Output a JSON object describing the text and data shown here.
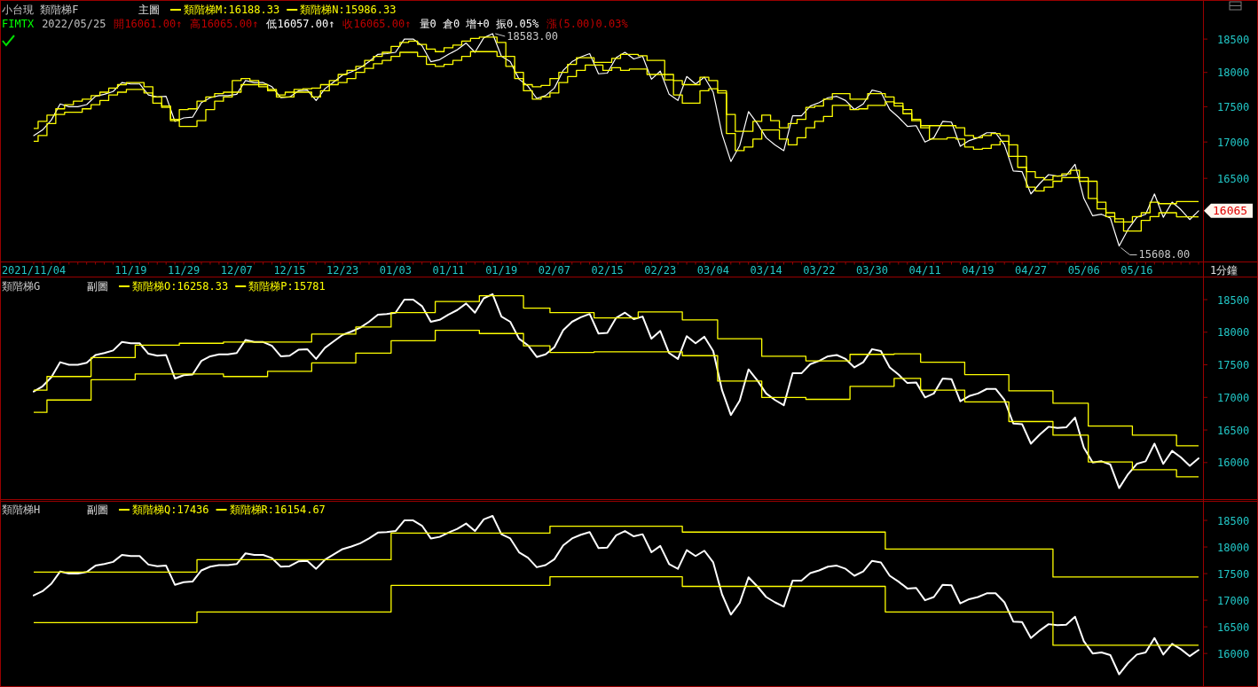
{
  "chart_data": [
    {
      "type": "line",
      "title": "小台現 類階梯F",
      "subtitle": "主圖",
      "xlabel": "1分鐘",
      "log": true,
      "legend": "top left",
      "categories": [
        "2021/11/04",
        null,
        null,
        null,
        null,
        null,
        null,
        null,
        null,
        null,
        null,
        "11/19",
        null,
        null,
        null,
        null,
        null,
        "11/29",
        null,
        null,
        null,
        null,
        null,
        "12/07",
        null,
        null,
        null,
        null,
        null,
        "12/15",
        null,
        null,
        null,
        null,
        null,
        "12/23",
        null,
        null,
        null,
        null,
        null,
        "01/03",
        null,
        null,
        null,
        null,
        null,
        "01/11",
        null,
        null,
        null,
        null,
        null,
        "01/19",
        null,
        null,
        null,
        null,
        null,
        "02/07",
        null,
        null,
        null,
        null,
        null,
        "02/15",
        null,
        null,
        null,
        null,
        null,
        "02/23",
        null,
        null,
        null,
        null,
        null,
        "03/04",
        null,
        null,
        null,
        null,
        null,
        "03/14",
        null,
        null,
        null,
        null,
        null,
        "03/22",
        null,
        null,
        null,
        null,
        null,
        "03/30",
        null,
        null,
        null,
        null,
        null,
        "04/11",
        null,
        null,
        null,
        null,
        null,
        "04/19",
        null,
        null,
        null,
        null,
        null,
        "04/27",
        null,
        null,
        null,
        null,
        null,
        "05/06",
        null,
        null,
        null,
        null,
        null,
        "05/16",
        null,
        null,
        null,
        null,
        null,
        null,
        null
      ],
      "series": [
        {
          "color": "#ffffff",
          "values": [
            17090,
            17170,
            17310,
            17540,
            17500,
            17500,
            17530,
            17650,
            17680,
            17720,
            17850,
            17830,
            17830,
            17670,
            17640,
            17650,
            17290,
            17340,
            17350,
            17560,
            17630,
            17660,
            17660,
            17680,
            17880,
            17850,
            17850,
            17790,
            17630,
            17640,
            17730,
            17740,
            17590,
            17760,
            17860,
            17960,
            18010,
            18070,
            18160,
            18270,
            18280,
            18300,
            18500,
            18500,
            18400,
            18160,
            18190,
            18270,
            18340,
            18440,
            18300,
            18520,
            18583,
            18240,
            18160,
            17900,
            17800,
            17620,
            17660,
            17770,
            18030,
            18160,
            18230,
            18280,
            17980,
            17990,
            18220,
            18300,
            18200,
            18240,
            17900,
            18020,
            17680,
            17590,
            17940,
            17830,
            17930,
            17710,
            17110,
            16730,
            16950,
            17430,
            17260,
            17060,
            16960,
            16880,
            17370,
            17370,
            17510,
            17560,
            17630,
            17650,
            17590,
            17460,
            17540,
            17740,
            17710,
            17460,
            17350,
            17220,
            17230,
            17000,
            17060,
            17290,
            17280,
            16940,
            17020,
            17060,
            17130,
            17130,
            16960,
            16600,
            16590,
            16290,
            16430,
            16550,
            16530,
            16540,
            16690,
            16230,
            16000,
            16020,
            15970,
            15608,
            15820,
            15980,
            16020,
            16290,
            15980,
            16180,
            16080,
            15950,
            16065
          ]
        },
        {
          "name": "類階梯M:16188.33",
          "type": "step",
          "color": "#ffff00",
          "values": [
            17190,
            17290,
            17380,
            17470,
            17530,
            17580,
            17610,
            17660,
            17710,
            17770,
            17820,
            17850,
            17850,
            17790,
            17640,
            17510,
            17300,
            17460,
            17470,
            17580,
            17640,
            17690,
            17710,
            17880,
            17910,
            17880,
            17820,
            17730,
            17670,
            17710,
            17750,
            17760,
            17770,
            17820,
            17880,
            17970,
            18030,
            18090,
            18180,
            18240,
            18300,
            18390,
            18450,
            18470,
            18420,
            18350,
            18310,
            18370,
            18410,
            18470,
            18510,
            18530,
            18530,
            18450,
            18240,
            18000,
            17820,
            17790,
            17810,
            17910,
            18000,
            18120,
            18220,
            18220,
            18150,
            18150,
            18210,
            18270,
            18270,
            18250,
            18180,
            18180,
            17970,
            17880,
            17820,
            17820,
            17930,
            17880,
            17700,
            17390,
            17150,
            17150,
            17290,
            17380,
            17300,
            17200,
            17260,
            17320,
            17490,
            17510,
            17610,
            17690,
            17690,
            17610,
            17610,
            17690,
            17690,
            17640,
            17550,
            17460,
            17300,
            17200,
            17230,
            17230,
            17230,
            17200,
            17090,
            17060,
            17090,
            17120,
            17090,
            16960,
            16800,
            16590,
            16510,
            16480,
            16530,
            16560,
            16610,
            16460,
            16230,
            16090,
            16040,
            15960,
            15920,
            15990,
            16040,
            16180,
            16160,
            16160,
            16188.33,
            16188.33,
            16188.33
          ]
        },
        {
          "name": "類階梯N:15986.33",
          "type": "step",
          "color": "#ffff00",
          "values": [
            17010,
            17090,
            17260,
            17390,
            17420,
            17420,
            17470,
            17530,
            17590,
            17670,
            17710,
            17750,
            17750,
            17700,
            17550,
            17490,
            17320,
            17220,
            17220,
            17300,
            17460,
            17580,
            17640,
            17710,
            17820,
            17820,
            17790,
            17750,
            17640,
            17640,
            17710,
            17710,
            17640,
            17730,
            17820,
            17850,
            17910,
            18000,
            18060,
            18130,
            18180,
            18240,
            18300,
            18300,
            18240,
            18120,
            18090,
            18120,
            18180,
            18240,
            18310,
            18310,
            18310,
            18240,
            18090,
            17910,
            17730,
            17610,
            17640,
            17700,
            17850,
            17940,
            18030,
            18110,
            18110,
            18030,
            18070,
            18030,
            18050,
            18050,
            17970,
            17970,
            17890,
            17670,
            17550,
            17550,
            17730,
            17760,
            17730,
            17120,
            16880,
            16930,
            17040,
            17170,
            17170,
            17040,
            16960,
            17060,
            17200,
            17290,
            17360,
            17520,
            17520,
            17460,
            17470,
            17520,
            17520,
            17570,
            17510,
            17400,
            17320,
            17230,
            17040,
            17040,
            17060,
            17040,
            16930,
            16900,
            16910,
            16960,
            17010,
            16800,
            16650,
            16380,
            16330,
            16380,
            16460,
            16510,
            16510,
            16510,
            16460,
            16180,
            15990,
            15920,
            15800,
            15800,
            15940,
            15990,
            16040,
            16040,
            15986.33,
            15986.33,
            15986.33
          ]
        }
      ],
      "ylim": [
        15410,
        19090
      ],
      "yticks": [
        16500,
        17000,
        17500,
        18000,
        18500
      ],
      "annotations": [
        "FIMTX",
        "2022/05/25",
        "開16061.00↑",
        "高16065.00↑",
        "低16057.00↑",
        "收16065.00↑",
        "量0 倉0 增+0 振0.05%",
        "漲(5.00)0.03%",
        "18583.00",
        "15608.00",
        "16065"
      ]
    },
    {
      "type": "line",
      "title": "類階梯G",
      "subtitle": "副圖",
      "legend": "top left",
      "tick_labels": "y",
      "categories": [
        null,
        null,
        null,
        null,
        null,
        null,
        null,
        null,
        null,
        null,
        null,
        null,
        null,
        null,
        null,
        null,
        null,
        null,
        null,
        null,
        null,
        null,
        null,
        null,
        null,
        null,
        null,
        null,
        null,
        null,
        null,
        null,
        null,
        null,
        null,
        null,
        null,
        null,
        null,
        null,
        null,
        null,
        null,
        null,
        null,
        null,
        null,
        null,
        null,
        null,
        null,
        null,
        null,
        null,
        null,
        null,
        null,
        null,
        null,
        null,
        null,
        null,
        null,
        null,
        null,
        null,
        null,
        null,
        null,
        null,
        null,
        null,
        null,
        null,
        null,
        null,
        null,
        null,
        null,
        null,
        null,
        null,
        null,
        null,
        null,
        null,
        null,
        null,
        null,
        null,
        null,
        null,
        null,
        null,
        null,
        null,
        null,
        null,
        null,
        null,
        null,
        null,
        null,
        null,
        null,
        null,
        null,
        null,
        null,
        null,
        null,
        null,
        null,
        null,
        null,
        null,
        null,
        null,
        null,
        null,
        null,
        null,
        null,
        null,
        null,
        null,
        null,
        null,
        null,
        null,
        null,
        null,
        null
      ],
      "series": [
        {
          "color": "#ffffff",
          "values": [
            17090,
            17170,
            17310,
            17540,
            17500,
            17500,
            17530,
            17650,
            17680,
            17720,
            17850,
            17830,
            17830,
            17670,
            17640,
            17650,
            17290,
            17340,
            17350,
            17560,
            17630,
            17660,
            17660,
            17680,
            17880,
            17850,
            17850,
            17790,
            17630,
            17640,
            17730,
            17740,
            17590,
            17760,
            17860,
            17960,
            18010,
            18070,
            18160,
            18270,
            18280,
            18300,
            18500,
            18500,
            18400,
            18160,
            18190,
            18270,
            18340,
            18440,
            18300,
            18520,
            18583,
            18240,
            18160,
            17900,
            17800,
            17620,
            17660,
            17770,
            18030,
            18160,
            18230,
            18280,
            17980,
            17990,
            18220,
            18300,
            18200,
            18240,
            17900,
            18020,
            17680,
            17590,
            17940,
            17830,
            17930,
            17710,
            17110,
            16730,
            16950,
            17430,
            17260,
            17060,
            16960,
            16880,
            17370,
            17370,
            17510,
            17560,
            17630,
            17650,
            17590,
            17460,
            17540,
            17740,
            17710,
            17460,
            17350,
            17220,
            17230,
            17000,
            17060,
            17290,
            17280,
            16940,
            17020,
            17060,
            17130,
            17130,
            16960,
            16600,
            16590,
            16290,
            16430,
            16550,
            16530,
            16540,
            16690,
            16230,
            16000,
            16020,
            15970,
            15608,
            15820,
            15980,
            16020,
            16290,
            15980,
            16180,
            16080,
            15950,
            16065
          ]
        },
        {
          "name": "類階梯O:16258.33",
          "type": "step",
          "color": "#ffff00",
          "values": [
            17110,
            17110,
            17320,
            17320,
            17320,
            17320,
            17320,
            17610,
            17610,
            17610,
            17610,
            17610,
            17800,
            17800,
            17800,
            17800,
            17800,
            17830,
            17830,
            17830,
            17830,
            17830,
            17850,
            17850,
            17850,
            17850,
            17850,
            17850,
            17850,
            17850,
            17850,
            17850,
            17970,
            17970,
            17970,
            17970,
            17970,
            18080,
            18080,
            18080,
            18080,
            18300,
            18300,
            18300,
            18300,
            18300,
            18470,
            18470,
            18470,
            18470,
            18470,
            18560,
            18560,
            18560,
            18560,
            18560,
            18370,
            18370,
            18370,
            18300,
            18300,
            18300,
            18300,
            18300,
            18220,
            18220,
            18220,
            18220,
            18220,
            18310,
            18310,
            18310,
            18310,
            18310,
            18190,
            18190,
            18190,
            18190,
            17900,
            17900,
            17900,
            17900,
            17900,
            17630,
            17630,
            17630,
            17630,
            17630,
            17560,
            17560,
            17560,
            17560,
            17560,
            17660,
            17660,
            17660,
            17660,
            17660,
            17670,
            17670,
            17670,
            17540,
            17540,
            17540,
            17540,
            17540,
            17350,
            17350,
            17350,
            17350,
            17350,
            17100,
            17100,
            17100,
            17100,
            17100,
            16910,
            16910,
            16910,
            16910,
            16560,
            16560,
            16560,
            16560,
            16560,
            16420,
            16420,
            16420,
            16420,
            16420,
            16258.33,
            16258.33,
            16258.33
          ]
        },
        {
          "name": "類階梯P:15781",
          "type": "step",
          "color": "#ffff00",
          "values": [
            16770,
            16770,
            16960,
            16960,
            16960,
            16960,
            16960,
            17270,
            17270,
            17270,
            17270,
            17270,
            17360,
            17360,
            17360,
            17360,
            17360,
            17360,
            17360,
            17360,
            17360,
            17360,
            17320,
            17320,
            17320,
            17320,
            17320,
            17400,
            17400,
            17400,
            17400,
            17400,
            17530,
            17530,
            17530,
            17530,
            17530,
            17680,
            17680,
            17680,
            17680,
            17870,
            17870,
            17870,
            17870,
            17870,
            18030,
            18030,
            18030,
            18030,
            18030,
            17980,
            17980,
            17980,
            17980,
            17980,
            17790,
            17790,
            17790,
            17690,
            17690,
            17690,
            17690,
            17690,
            17700,
            17700,
            17700,
            17700,
            17700,
            17700,
            17700,
            17700,
            17700,
            17700,
            17640,
            17640,
            17640,
            17640,
            17250,
            17250,
            17250,
            17250,
            17250,
            17000,
            17000,
            17000,
            17000,
            17000,
            16970,
            16970,
            16970,
            16970,
            16970,
            17170,
            17170,
            17170,
            17170,
            17170,
            17290,
            17290,
            17290,
            17110,
            17110,
            17110,
            17110,
            17110,
            16930,
            16930,
            16930,
            16930,
            16930,
            16630,
            16630,
            16630,
            16630,
            16630,
            16420,
            16420,
            16420,
            16420,
            16010,
            16010,
            16010,
            16010,
            16010,
            15890,
            15890,
            15890,
            15890,
            15890,
            15781,
            15781,
            15781
          ]
        }
      ],
      "ylim": [
        15440,
        18840
      ],
      "yticks": [
        16000,
        16500,
        17000,
        17500,
        18000,
        18500
      ]
    },
    {
      "type": "line",
      "title": "類階梯H",
      "subtitle": "副圖",
      "legend": "top left",
      "tick_labels": "y",
      "categories": [
        null,
        null,
        null,
        null,
        null,
        null,
        null,
        null,
        null,
        null,
        null,
        null,
        null,
        null,
        null,
        null,
        null,
        null,
        null,
        null,
        null,
        null,
        null,
        null,
        null,
        null,
        null,
        null,
        null,
        null,
        null,
        null,
        null,
        null,
        null,
        null,
        null,
        null,
        null,
        null,
        null,
        null,
        null,
        null,
        null,
        null,
        null,
        null,
        null,
        null,
        null,
        null,
        null,
        null,
        null,
        null,
        null,
        null,
        null,
        null,
        null,
        null,
        null,
        null,
        null,
        null,
        null,
        null,
        null,
        null,
        null,
        null,
        null,
        null,
        null,
        null,
        null,
        null,
        null,
        null,
        null,
        null,
        null,
        null,
        null,
        null,
        null,
        null,
        null,
        null,
        null,
        null,
        null,
        null,
        null,
        null,
        null,
        null,
        null,
        null,
        null,
        null,
        null,
        null,
        null,
        null,
        null,
        null,
        null,
        null,
        null,
        null,
        null,
        null,
        null,
        null,
        null,
        null,
        null,
        null,
        null,
        null,
        null,
        null,
        null,
        null,
        null,
        null,
        null,
        null,
        null,
        null,
        null
      ],
      "series": [
        {
          "color": "#ffffff",
          "values": [
            17090,
            17170,
            17310,
            17540,
            17500,
            17500,
            17530,
            17650,
            17680,
            17720,
            17850,
            17830,
            17830,
            17670,
            17640,
            17650,
            17290,
            17340,
            17350,
            17560,
            17630,
            17660,
            17660,
            17680,
            17880,
            17850,
            17850,
            17790,
            17630,
            17640,
            17730,
            17740,
            17590,
            17760,
            17860,
            17960,
            18010,
            18070,
            18160,
            18270,
            18280,
            18300,
            18500,
            18500,
            18400,
            18160,
            18190,
            18270,
            18340,
            18440,
            18300,
            18520,
            18583,
            18240,
            18160,
            17900,
            17800,
            17620,
            17660,
            17770,
            18030,
            18160,
            18230,
            18280,
            17980,
            17990,
            18220,
            18300,
            18200,
            18240,
            17900,
            18020,
            17680,
            17590,
            17940,
            17830,
            17930,
            17710,
            17110,
            16730,
            16950,
            17430,
            17260,
            17060,
            16960,
            16880,
            17370,
            17370,
            17510,
            17560,
            17630,
            17650,
            17590,
            17460,
            17540,
            17740,
            17710,
            17460,
            17350,
            17220,
            17230,
            17000,
            17060,
            17290,
            17280,
            16940,
            17020,
            17060,
            17130,
            17130,
            16960,
            16600,
            16590,
            16290,
            16430,
            16550,
            16530,
            16540,
            16690,
            16230,
            16000,
            16020,
            15970,
            15608,
            15820,
            15980,
            16020,
            16290,
            15980,
            16180,
            16080,
            15950,
            16065
          ]
        },
        {
          "name": "類階梯Q:17436",
          "type": "step",
          "color": "#ffff00",
          "values": [
            17530,
            17530,
            17530,
            17530,
            17530,
            17530,
            17530,
            17530,
            17530,
            17530,
            17530,
            17530,
            17530,
            17530,
            17530,
            17530,
            17530,
            17530,
            17530,
            17760,
            17760,
            17760,
            17760,
            17760,
            17760,
            17760,
            17760,
            17760,
            17760,
            17760,
            17760,
            17760,
            17760,
            17760,
            17760,
            17760,
            17760,
            17760,
            17760,
            17760,
            17760,
            18260,
            18260,
            18260,
            18260,
            18260,
            18260,
            18260,
            18260,
            18260,
            18260,
            18260,
            18260,
            18260,
            18260,
            18260,
            18260,
            18260,
            18260,
            18390,
            18390,
            18390,
            18390,
            18390,
            18390,
            18390,
            18390,
            18390,
            18390,
            18390,
            18390,
            18390,
            18390,
            18390,
            18280,
            18280,
            18280,
            18280,
            18280,
            18280,
            18280,
            18280,
            18280,
            18280,
            18280,
            18280,
            18280,
            18280,
            18280,
            18280,
            18280,
            18280,
            18280,
            18280,
            18280,
            18280,
            18280,
            17960,
            17960,
            17960,
            17960,
            17960,
            17960,
            17960,
            17960,
            17960,
            17960,
            17960,
            17960,
            17960,
            17960,
            17960,
            17960,
            17960,
            17960,
            17960,
            17436,
            17436,
            17436,
            17436,
            17436,
            17436,
            17436,
            17436,
            17436,
            17436,
            17436,
            17436,
            17436,
            17436,
            17436,
            17436,
            17436
          ]
        },
        {
          "name": "類階梯R:16154.67",
          "type": "step",
          "color": "#ffff00",
          "values": [
            16580,
            16580,
            16580,
            16580,
            16580,
            16580,
            16580,
            16580,
            16580,
            16580,
            16580,
            16580,
            16580,
            16580,
            16580,
            16580,
            16580,
            16580,
            16580,
            16780,
            16780,
            16780,
            16780,
            16780,
            16780,
            16780,
            16780,
            16780,
            16780,
            16780,
            16780,
            16780,
            16780,
            16780,
            16780,
            16780,
            16780,
            16780,
            16780,
            16780,
            16780,
            17280,
            17280,
            17280,
            17280,
            17280,
            17280,
            17280,
            17280,
            17280,
            17280,
            17280,
            17280,
            17280,
            17280,
            17280,
            17280,
            17280,
            17280,
            17440,
            17440,
            17440,
            17440,
            17440,
            17440,
            17440,
            17440,
            17440,
            17440,
            17440,
            17440,
            17440,
            17440,
            17440,
            17260,
            17260,
            17260,
            17260,
            17260,
            17260,
            17260,
            17260,
            17260,
            17260,
            17260,
            17260,
            17260,
            17260,
            17260,
            17260,
            17260,
            17260,
            17260,
            17260,
            17260,
            17260,
            17260,
            16780,
            16780,
            16780,
            16780,
            16780,
            16780,
            16780,
            16780,
            16780,
            16780,
            16780,
            16780,
            16780,
            16780,
            16780,
            16780,
            16780,
            16780,
            16780,
            16154.67,
            16154.67,
            16154.67,
            16154.67,
            16154.67,
            16154.67,
            16154.67,
            16154.67,
            16154.67,
            16154.67,
            16154.67,
            16154.67,
            16154.67,
            16154.67,
            16154.67,
            16154.67,
            16154.67
          ]
        }
      ],
      "ylim": [
        15420,
        18850
      ],
      "yticks": [
        16000,
        16500,
        17000,
        17500,
        18000,
        18500
      ]
    }
  ]
}
